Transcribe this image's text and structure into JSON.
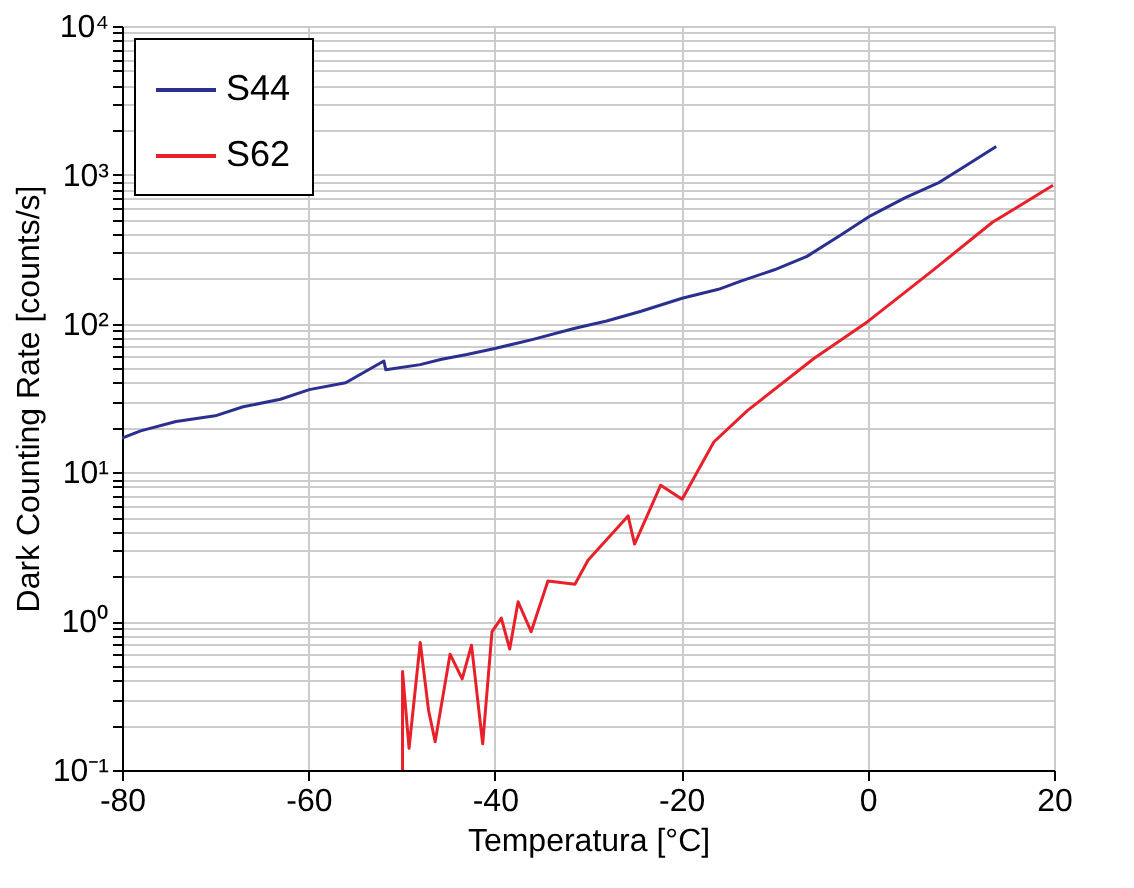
{
  "chart_data": {
    "type": "line",
    "xlabel": "Temperatura [°C]",
    "ylabel": "Dark Counting Rate [counts/s]",
    "log": "y",
    "grid": true,
    "legend": "top left",
    "line_style": "solid",
    "marker": "none",
    "xlim": [
      -80,
      20
    ],
    "xticks": [
      -80,
      -60,
      -40,
      -20,
      0,
      20
    ],
    "ylim": [
      0.1,
      10000
    ],
    "yticks": [
      {
        "value": 0.1,
        "label": "10⁻¹"
      },
      {
        "value": 0.2,
        "label": null
      },
      {
        "value": 0.3,
        "label": null
      },
      {
        "value": 0.4,
        "label": null
      },
      {
        "value": 0.5,
        "label": null
      },
      {
        "value": 0.6,
        "label": null
      },
      {
        "value": 0.7,
        "label": null
      },
      {
        "value": 0.8,
        "label": null
      },
      {
        "value": 0.9,
        "label": null
      },
      {
        "value": 1,
        "label": "10⁰"
      },
      {
        "value": 2,
        "label": null
      },
      {
        "value": 3,
        "label": null
      },
      {
        "value": 4,
        "label": null
      },
      {
        "value": 5,
        "label": null
      },
      {
        "value": 6,
        "label": null
      },
      {
        "value": 7,
        "label": null
      },
      {
        "value": 8,
        "label": null
      },
      {
        "value": 9,
        "label": null
      },
      {
        "value": 10,
        "label": "10¹"
      },
      {
        "value": 20,
        "label": null
      },
      {
        "value": 30,
        "label": null
      },
      {
        "value": 40,
        "label": null
      },
      {
        "value": 50,
        "label": null
      },
      {
        "value": 60,
        "label": null
      },
      {
        "value": 70,
        "label": null
      },
      {
        "value": 80,
        "label": null
      },
      {
        "value": 90,
        "label": null
      },
      {
        "value": 100,
        "label": "10²"
      },
      {
        "value": 200,
        "label": null
      },
      {
        "value": 300,
        "label": null
      },
      {
        "value": 400,
        "label": null
      },
      {
        "value": 500,
        "label": null
      },
      {
        "value": 600,
        "label": null
      },
      {
        "value": 700,
        "label": null
      },
      {
        "value": 800,
        "label": null
      },
      {
        "value": 900,
        "label": null
      },
      {
        "value": 1000,
        "label": "10³"
      },
      {
        "value": 2000,
        "label": null
      },
      {
        "value": 3000,
        "label": null
      },
      {
        "value": 4000,
        "label": null
      },
      {
        "value": 5000,
        "label": null
      },
      {
        "value": 6000,
        "label": null
      },
      {
        "value": 7000,
        "label": null
      },
      {
        "value": 8000,
        "label": null
      },
      {
        "value": 9000,
        "label": null
      },
      {
        "value": 10000,
        "label": "10⁴"
      }
    ],
    "series": [
      {
        "name": "S44",
        "color": "#2b2f8f",
        "x": [
          -80,
          -78,
          -74.2,
          -70,
          -67,
          -63,
          -59.9,
          -56,
          -51.9,
          -51.7,
          -48,
          -45.7,
          -43,
          -40,
          -36,
          -31.4,
          -28,
          -24.3,
          -19.9,
          -16,
          -13.6,
          -10,
          -6.5,
          -3,
          0.3,
          4,
          7.7,
          11,
          13.8
        ],
        "values": [
          17,
          19,
          22,
          24,
          27.6,
          31,
          36,
          40,
          56,
          49,
          53,
          57.6,
          62,
          68,
          78,
          93,
          104,
          121,
          148,
          170,
          193,
          230,
          283,
          390,
          530,
          700,
          890,
          1200,
          1550
        ]
      },
      {
        "name": "S62",
        "color": "#e8202a",
        "x": [
          -49.9,
          -49.9,
          -49.2,
          -48,
          -47.1,
          -46.4,
          -44.8,
          -43.5,
          -42.5,
          -41.3,
          -40.3,
          -39.3,
          -38.4,
          -37.5,
          -36.1,
          -34.3,
          -31.4,
          -30,
          -25.7,
          -25,
          -22.2,
          -19.9,
          -16.5,
          -12.9,
          -5.8,
          0,
          7,
          13.4,
          19.9
        ],
        "values": [
          0.1,
          0.46,
          0.14,
          0.72,
          0.25,
          0.155,
          0.6,
          0.41,
          0.69,
          0.15,
          0.85,
          1.05,
          0.65,
          1.35,
          0.85,
          1.86,
          1.77,
          2.57,
          5.1,
          3.3,
          8.2,
          6.6,
          16,
          26,
          58,
          103,
          228,
          480,
          850
        ]
      }
    ]
  }
}
